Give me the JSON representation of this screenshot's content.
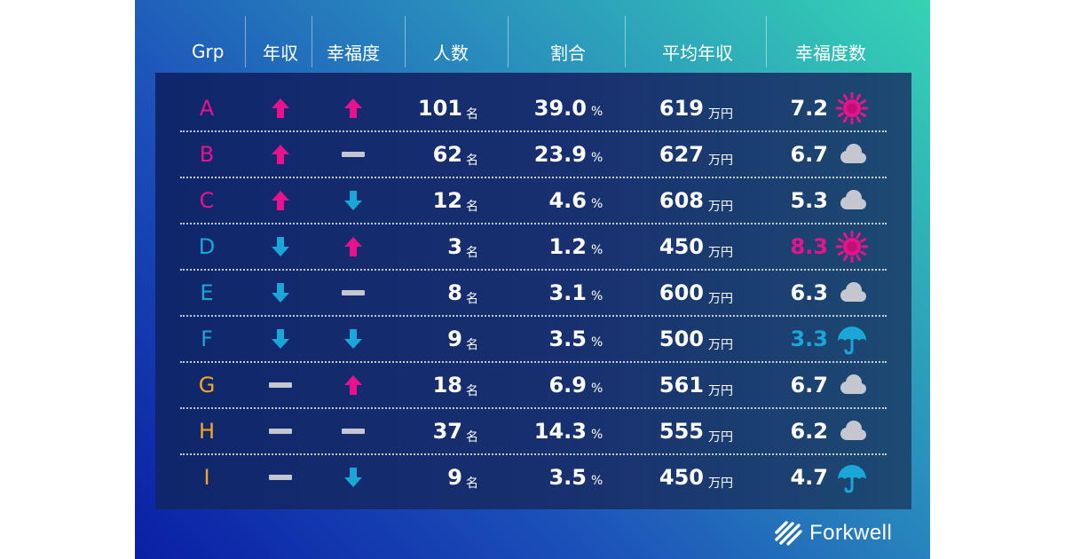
{
  "headers": {
    "grp": "Grp",
    "income": "年収",
    "happiness": "幸福度",
    "people": "人数",
    "ratio": "割合",
    "avg_income": "平均年収",
    "happiness_score": "幸福度数"
  },
  "units": {
    "people": "名",
    "ratio": "%",
    "income": "万円"
  },
  "colors": {
    "pink": "#e8138c",
    "blue": "#1aa6d6",
    "orange": "#f5a623",
    "gray": "#c4c7cf"
  },
  "rows": [
    {
      "grp": "A",
      "grp_color": "pink",
      "income_trend": "up",
      "happiness_trend": "up",
      "people": "101",
      "ratio": "39.0",
      "avg_income": "619",
      "score": "7.2",
      "score_color": "white",
      "weather": "sun-icon"
    },
    {
      "grp": "B",
      "grp_color": "pink",
      "income_trend": "up",
      "happiness_trend": "flat",
      "people": "62",
      "ratio": "23.9",
      "avg_income": "627",
      "score": "6.7",
      "score_color": "white",
      "weather": "cloud-icon"
    },
    {
      "grp": "C",
      "grp_color": "pink",
      "income_trend": "up",
      "happiness_trend": "down",
      "people": "12",
      "ratio": "4.6",
      "avg_income": "608",
      "score": "5.3",
      "score_color": "white",
      "weather": "cloud-icon"
    },
    {
      "grp": "D",
      "grp_color": "blue",
      "income_trend": "down",
      "happiness_trend": "up",
      "people": "3",
      "ratio": "1.2",
      "avg_income": "450",
      "score": "8.3",
      "score_color": "pink",
      "weather": "sun-icon"
    },
    {
      "grp": "E",
      "grp_color": "blue",
      "income_trend": "down",
      "happiness_trend": "flat",
      "people": "8",
      "ratio": "3.1",
      "avg_income": "600",
      "score": "6.3",
      "score_color": "white",
      "weather": "cloud-icon"
    },
    {
      "grp": "F",
      "grp_color": "blue",
      "income_trend": "down",
      "happiness_trend": "down",
      "people": "9",
      "ratio": "3.5",
      "avg_income": "500",
      "score": "3.3",
      "score_color": "blue",
      "weather": "umbrella-icon"
    },
    {
      "grp": "G",
      "grp_color": "orange",
      "income_trend": "flat",
      "happiness_trend": "up",
      "people": "18",
      "ratio": "6.9",
      "avg_income": "561",
      "score": "6.7",
      "score_color": "white",
      "weather": "cloud-icon"
    },
    {
      "grp": "H",
      "grp_color": "orange",
      "income_trend": "flat",
      "happiness_trend": "flat",
      "people": "37",
      "ratio": "14.3",
      "avg_income": "555",
      "score": "6.2",
      "score_color": "white",
      "weather": "cloud-icon"
    },
    {
      "grp": "I",
      "grp_color": "orange",
      "income_trend": "flat",
      "happiness_trend": "down",
      "people": "9",
      "ratio": "3.5",
      "avg_income": "450",
      "score": "4.7",
      "score_color": "white",
      "weather": "umbrella-icon"
    }
  ],
  "brand": {
    "name": "Forkwell"
  }
}
